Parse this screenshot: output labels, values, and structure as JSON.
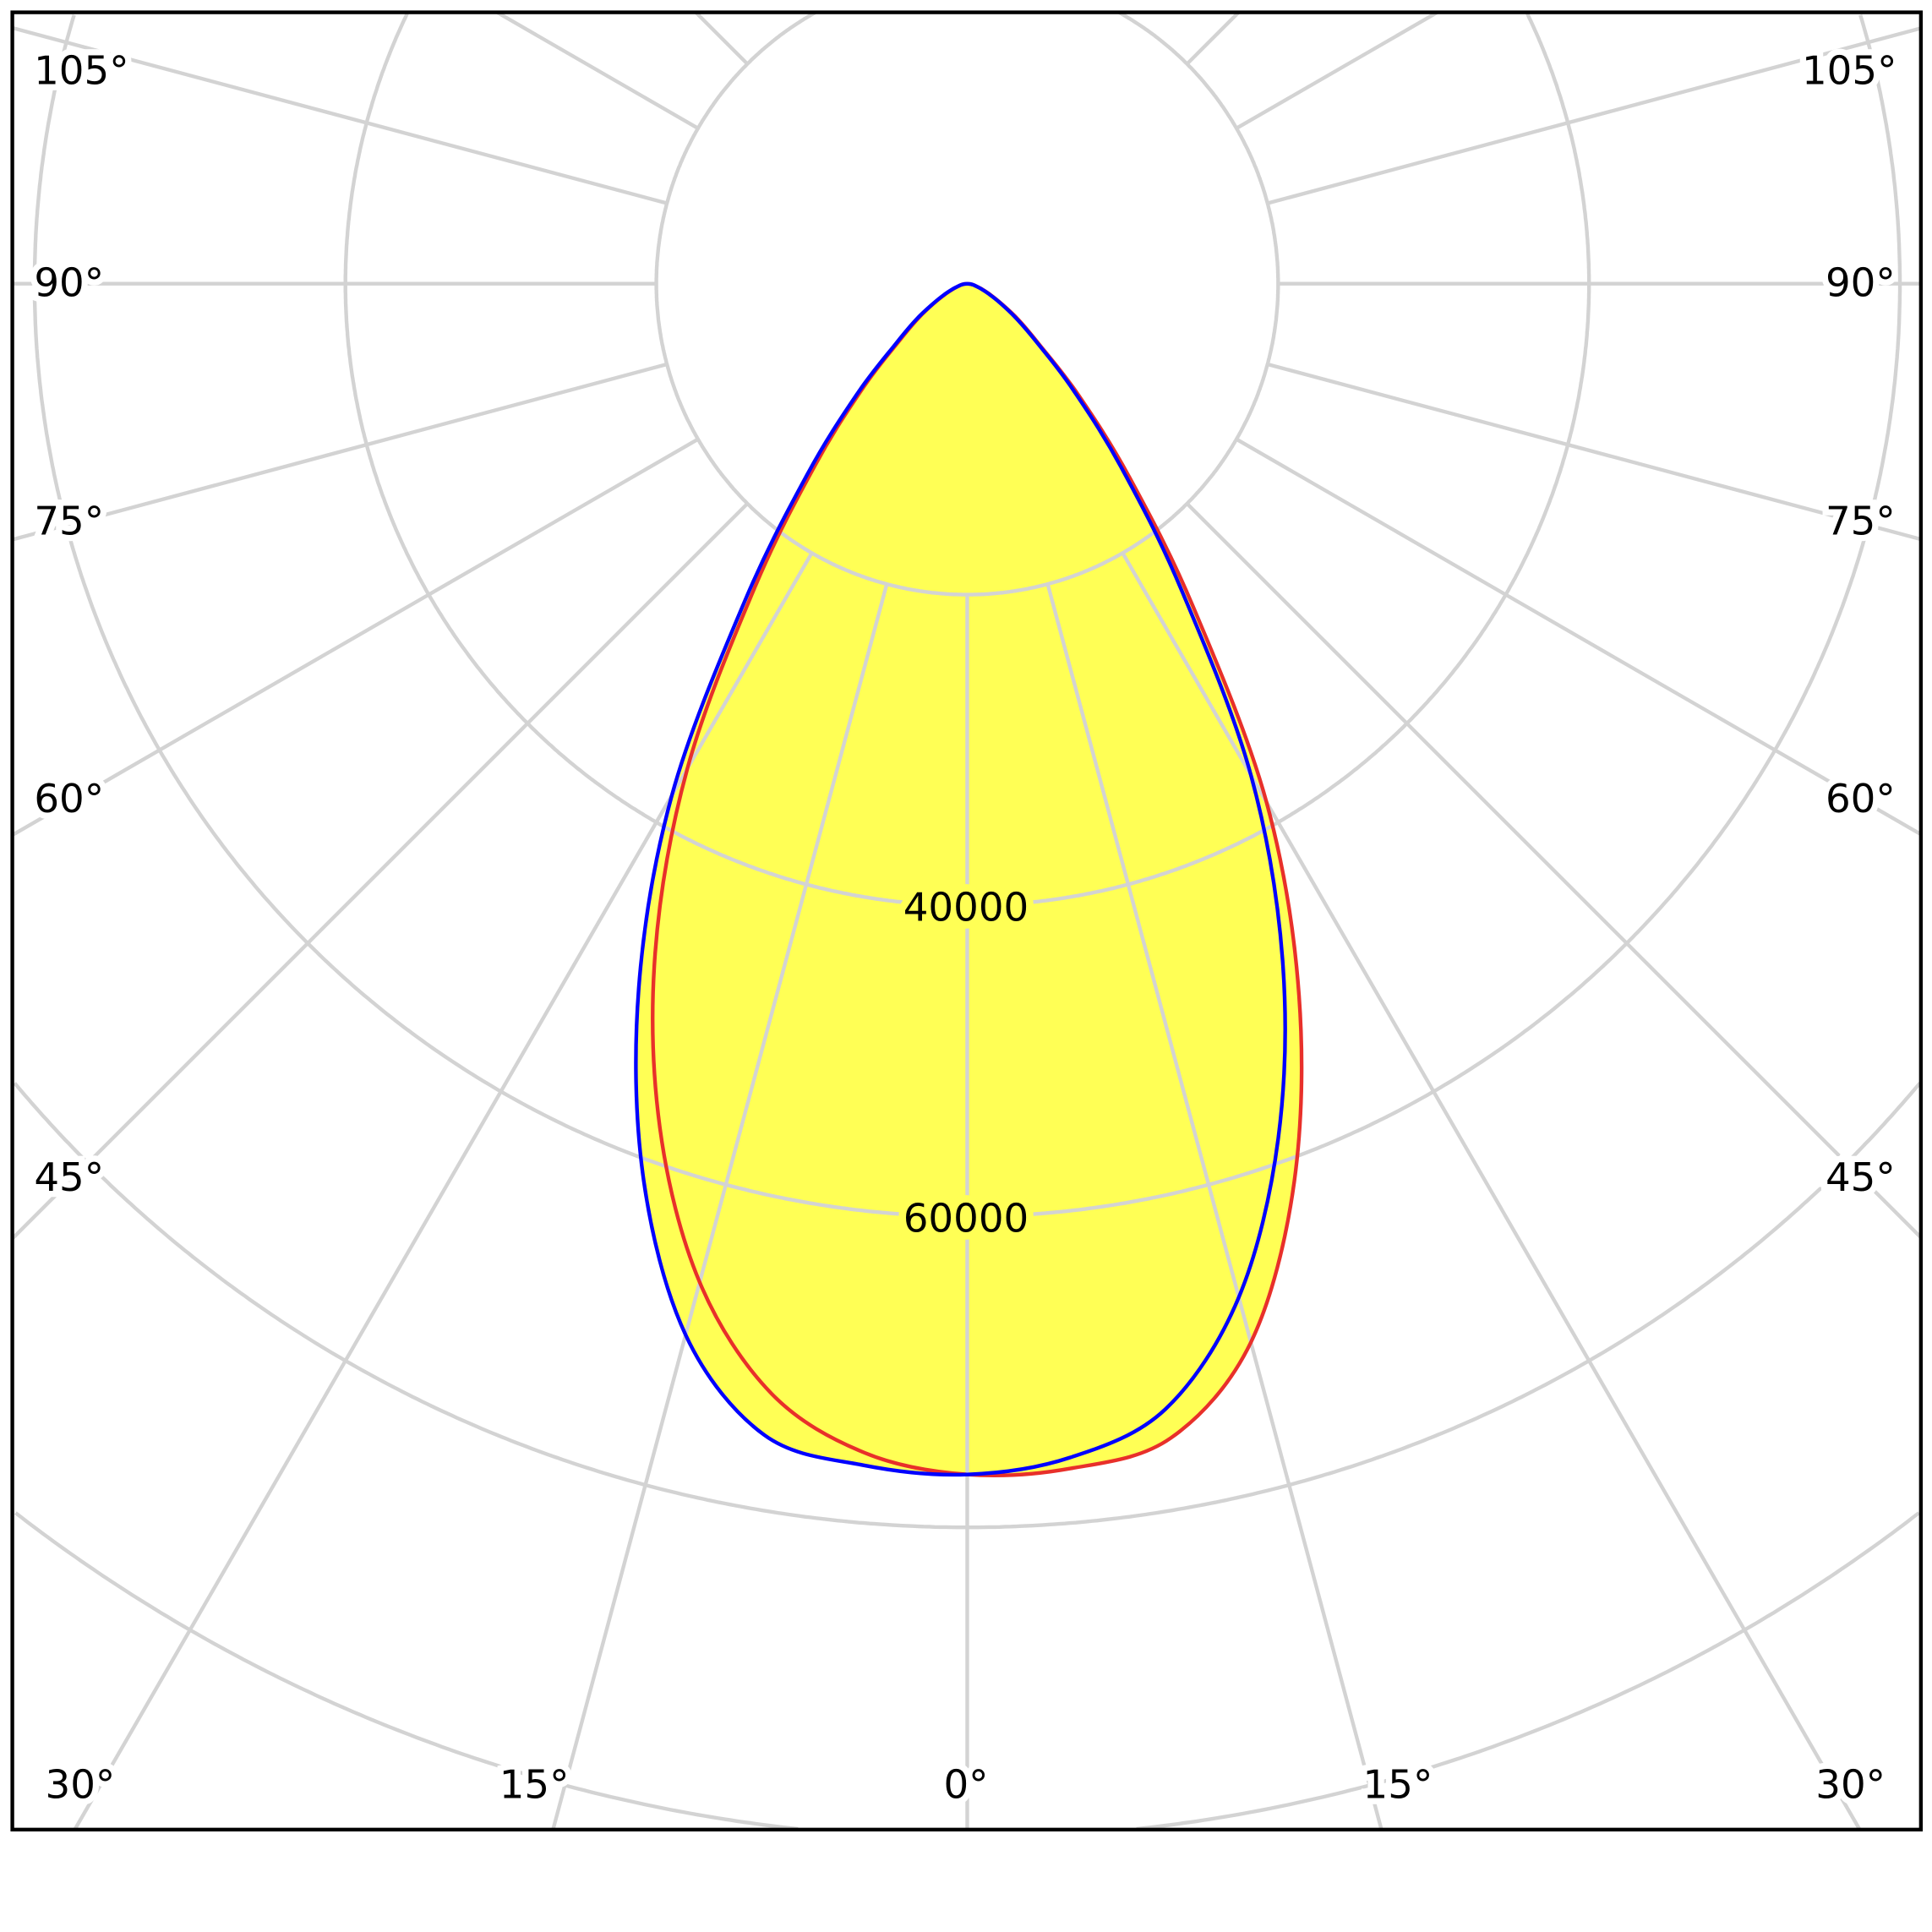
{
  "chart_data": {
    "type": "polar",
    "title": "",
    "angle_unit": "degrees",
    "radial_unit": "",
    "radial_ticks": [
      20000,
      40000,
      60000,
      80000,
      100000
    ],
    "radial_tick_labels_shown": [
      "40000",
      "60000"
    ],
    "angle_grid_step": 15,
    "angle_labels": {
      "left": [
        "105°",
        "90°",
        "75°",
        "60°",
        "45°"
      ],
      "right": [
        "105°",
        "90°",
        "75°",
        "60°",
        "45°"
      ],
      "bottom": [
        "30°",
        "15°",
        "0°",
        "15°",
        "30°"
      ]
    },
    "grid": true,
    "angles": [
      0,
      5,
      10,
      15,
      20,
      25,
      30,
      35,
      40,
      45,
      50,
      55,
      60,
      65,
      70,
      75,
      80,
      85,
      90
    ],
    "series": [
      {
        "color": "#0000ff",
        "left": [
          76600,
          76300,
          75200,
          70000,
          61000,
          50000,
          38000,
          25000,
          16000,
          10000,
          6000,
          4000,
          2500,
          1600,
          1000,
          600,
          400,
          200,
          0
        ],
        "right": [
          76600,
          75800,
          73500,
          67500,
          58500,
          48000,
          36500,
          24000,
          15400,
          9600,
          5800,
          3800,
          2400,
          1500,
          950,
          570,
          380,
          190,
          0
        ]
      },
      {
        "color": "#e8302a",
        "left": [
          76600,
          75500,
          72500,
          66500,
          57800,
          47500,
          36000,
          23800,
          15200,
          9500,
          5700,
          3800,
          2400,
          1500,
          950,
          570,
          380,
          190,
          0
        ],
        "right": [
          76800,
          76500,
          75400,
          70500,
          61500,
          50500,
          38500,
          25300,
          16200,
          10100,
          6000,
          4000,
          2500,
          1600,
          1000,
          600,
          400,
          200,
          0
        ]
      }
    ],
    "fill_color": "#ffff55",
    "grid_color": "#d3d3d3"
  }
}
